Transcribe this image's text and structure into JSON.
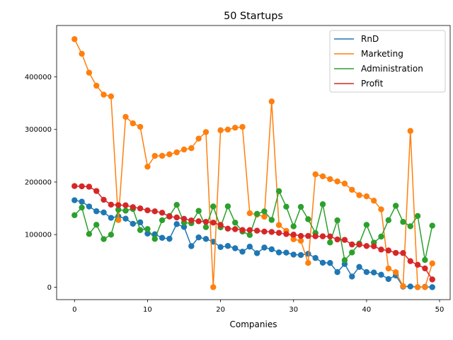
{
  "chart_data": {
    "type": "line",
    "title": "50 Startups",
    "xlabel": "Companies",
    "ylabel": "",
    "xlim": [
      -2.45,
      51.45
    ],
    "ylim": [
      -23700,
      497700
    ],
    "x_ticks": [
      0,
      10,
      20,
      30,
      40,
      50
    ],
    "y_ticks": [
      0,
      100000,
      200000,
      300000,
      400000
    ],
    "grid": false,
    "legend_position": "top-right",
    "markers": true,
    "x": [
      0,
      1,
      2,
      3,
      4,
      5,
      6,
      7,
      8,
      9,
      10,
      11,
      12,
      13,
      14,
      15,
      16,
      17,
      18,
      19,
      20,
      21,
      22,
      23,
      24,
      25,
      26,
      27,
      28,
      29,
      30,
      31,
      32,
      33,
      34,
      35,
      36,
      37,
      38,
      39,
      40,
      41,
      42,
      43,
      44,
      45,
      46,
      47,
      48,
      49
    ],
    "series": [
      {
        "name": "RnD",
        "color": "#1f77b4",
        "values": [
          165349,
          162598,
          153442,
          144372,
          142107,
          131877,
          134615,
          130298,
          120543,
          123335,
          101913,
          100672,
          93864,
          91992,
          119943,
          114524,
          78014,
          94657,
          91749,
          86420,
          76254,
          78390,
          73995,
          67533,
          77044,
          64665,
          75329,
          72108,
          66052,
          65606,
          61995,
          61137,
          63409,
          55494,
          46427,
          46015,
          28664,
          44070,
          20230,
          38559,
          28754,
          27892,
          23641,
          15506,
          22178,
          1001,
          1315,
          0,
          543,
          0
        ]
      },
      {
        "name": "Marketing",
        "color": "#ff7f0e",
        "values": [
          471784,
          443899,
          407935,
          383200,
          366168,
          362861,
          127717,
          323877,
          311613,
          304982,
          229161,
          249745,
          249839,
          252665,
          256513,
          261776,
          264346,
          282574,
          294920,
          0,
          298494,
          299737,
          303320,
          304769,
          140574,
          137963,
          134051,
          353184,
          118149,
          107138,
          91131,
          88219,
          46086,
          214635,
          210798,
          205518,
          201127,
          197029,
          185265,
          174999,
          172795,
          164471,
          148001,
          35534,
          28335,
          1904,
          297114,
          0,
          0,
          45173
        ]
      },
      {
        "name": "Administration",
        "color": "#2ca02c",
        "values": [
          136898,
          151378,
          101146,
          118672,
          91392,
          99815,
          147199,
          145530,
          148719,
          108679,
          110594,
          91791,
          127321,
          135495,
          156547,
          122617,
          121598,
          145078,
          114176,
          153514,
          113867,
          153773,
          122783,
          105751,
          99281,
          139553,
          144136,
          127865,
          182646,
          153032,
          115642,
          152702,
          129220,
          103057,
          157694,
          85047,
          127056,
          51283,
          65947,
          82983,
          118546,
          84711,
          96190,
          127383,
          154806,
          124153,
          115816,
          135427,
          51744,
          116984
        ]
      },
      {
        "name": "Profit",
        "color": "#d62728",
        "values": [
          192262,
          191792,
          191050,
          182902,
          166188,
          156991,
          156123,
          155753,
          152212,
          149760,
          146122,
          144259,
          141586,
          134307,
          132603,
          129917,
          126993,
          125370,
          124267,
          122777,
          118474,
          111314,
          110352,
          108734,
          108552,
          107404,
          105734,
          105008,
          103282,
          101004,
          99938,
          97484,
          97427,
          96779,
          96712,
          96479,
          90708,
          89949,
          81230,
          81005,
          78240,
          77799,
          71498,
          69759,
          65200,
          64927,
          49491,
          42560,
          35673,
          14681
        ]
      }
    ]
  }
}
